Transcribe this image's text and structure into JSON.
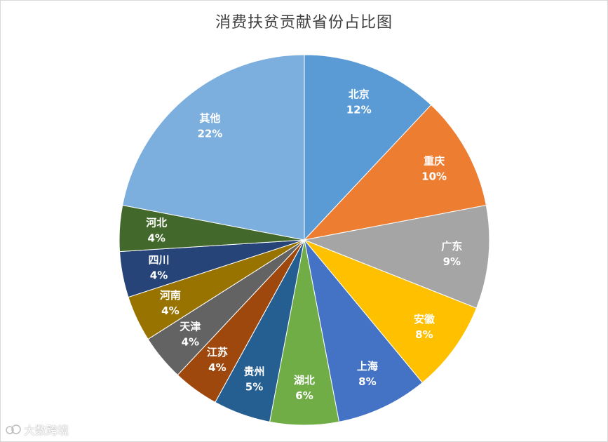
{
  "chart_data": {
    "type": "pie",
    "title": "消费扶贫贡献省份占比图",
    "start_angle_deg": 0,
    "direction": "clockwise",
    "slices": [
      {
        "label": "北京",
        "value": 12,
        "percent_label": "12%",
        "color": "#5b9bd5"
      },
      {
        "label": "重庆",
        "value": 10,
        "percent_label": "10%",
        "color": "#ed7d31"
      },
      {
        "label": "广东",
        "value": 9,
        "percent_label": "9%",
        "color": "#a5a5a5"
      },
      {
        "label": "安徽",
        "value": 8,
        "percent_label": "8%",
        "color": "#ffc000"
      },
      {
        "label": "上海",
        "value": 8,
        "percent_label": "8%",
        "color": "#4472c4"
      },
      {
        "label": "湖北",
        "value": 6,
        "percent_label": "6%",
        "color": "#70ad47"
      },
      {
        "label": "贵州",
        "value": 5,
        "percent_label": "5%",
        "color": "#255e91"
      },
      {
        "label": "江苏",
        "value": 4,
        "percent_label": "4%",
        "color": "#9e480e"
      },
      {
        "label": "天津",
        "value": 4,
        "percent_label": "4%",
        "color": "#636363"
      },
      {
        "label": "河南",
        "value": 4,
        "percent_label": "4%",
        "color": "#997300"
      },
      {
        "label": "四川",
        "value": 4,
        "percent_label": "4%",
        "color": "#264478"
      },
      {
        "label": "河北",
        "value": 4,
        "percent_label": "4%",
        "color": "#43682b"
      },
      {
        "label": "其他",
        "value": 22,
        "percent_label": "22%",
        "color": "#7cafdd"
      }
    ]
  },
  "watermark": {
    "text": "大数跨境"
  }
}
